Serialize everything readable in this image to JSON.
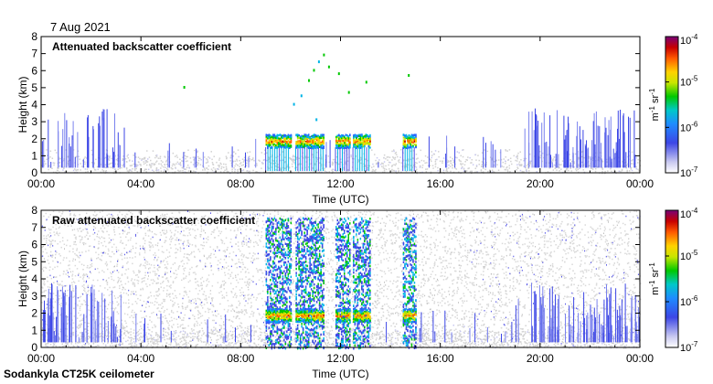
{
  "page": {
    "date": "7 Aug 2021",
    "footer": "Sodankyla CT25K ceilometer"
  },
  "chart_data": [
    {
      "type": "heatmap",
      "title": "Attenuated backscatter coefficient",
      "xlabel": "Time (UTC)",
      "ylabel": "Height (km)",
      "xlim": [
        0,
        24
      ],
      "ylim": [
        0,
        8
      ],
      "x_ticks": [
        "00:00",
        "04:00",
        "08:00",
        "12:00",
        "16:00",
        "20:00",
        "00:00"
      ],
      "y_ticks": [
        "0",
        "1",
        "2",
        "3",
        "4",
        "5",
        "6",
        "7",
        "8"
      ],
      "colorbar": {
        "label_base": "m",
        "label_exp1": "-1",
        "label_mid": "sr",
        "label_exp2": "-1",
        "ticks": [
          {
            "base": "10",
            "exp": "-4"
          },
          {
            "base": "10",
            "exp": "-5"
          },
          {
            "base": "10",
            "exp": "-6"
          },
          {
            "base": "10",
            "exp": "-7"
          }
        ],
        "range": [
          1e-07,
          0.0001
        ],
        "scale": "log"
      },
      "features": {
        "cloud_layer_km": [
          1.5,
          2.3
        ],
        "cloud_periods_utc": [
          [
            9.0,
            10.0
          ],
          [
            10.2,
            11.3
          ],
          [
            11.8,
            12.4
          ],
          [
            12.5,
            13.2
          ],
          [
            14.5,
            15.0
          ]
        ],
        "boundary_layer_top_km": 1.0,
        "aerosol_spikes_max_km": 4.2
      }
    },
    {
      "type": "heatmap",
      "title": "Raw attenuated backscatter coefficient",
      "xlabel": "Time (UTC)",
      "ylabel": "Height (km)",
      "xlim": [
        0,
        24
      ],
      "ylim": [
        0,
        8
      ],
      "x_ticks": [
        "00:00",
        "04:00",
        "08:00",
        "12:00",
        "16:00",
        "20:00",
        "00:00"
      ],
      "y_ticks": [
        "0",
        "1",
        "2",
        "3",
        "4",
        "5",
        "6",
        "7",
        "8"
      ],
      "colorbar": {
        "label_base": "m",
        "label_exp1": "-1",
        "label_mid": "sr",
        "label_exp2": "-1",
        "ticks": [
          {
            "base": "10",
            "exp": "-4"
          },
          {
            "base": "10",
            "exp": "-5"
          },
          {
            "base": "10",
            "exp": "-6"
          },
          {
            "base": "10",
            "exp": "-7"
          }
        ],
        "range": [
          1e-07,
          0.0001
        ],
        "scale": "log"
      },
      "features": {
        "cloud_layer_km": [
          1.5,
          2.3
        ],
        "cloud_periods_utc": [
          [
            9.0,
            10.0
          ],
          [
            10.2,
            11.3
          ],
          [
            11.8,
            12.4
          ],
          [
            12.5,
            13.2
          ],
          [
            14.5,
            15.0
          ]
        ],
        "boundary_layer_top_km": 1.0,
        "noise_background": true
      }
    }
  ]
}
